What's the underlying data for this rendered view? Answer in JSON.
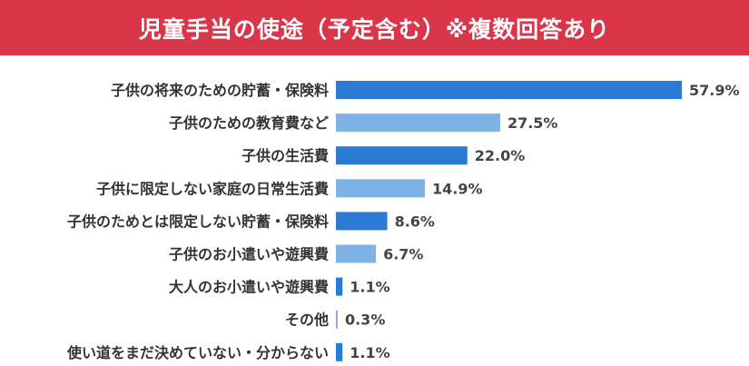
{
  "chart_data": {
    "type": "bar",
    "orientation": "horizontal",
    "title": "児童手当の使途（予定含む）※複数回答あり",
    "categories": [
      "子供の将来のための貯蓄・保険料",
      "子供のための教育費など",
      "子供の生活費",
      "子供に限定しない家庭の日常生活費",
      "子供のためとは限定しない貯蓄・保険料",
      "子供のお小遣いや遊興費",
      "大人のお小遣いや遊興費",
      "その他",
      "使い道をまだ決めていない・分からない"
    ],
    "values": [
      57.9,
      27.5,
      22.0,
      14.9,
      8.6,
      6.7,
      1.1,
      0.3,
      1.1
    ],
    "value_labels": [
      "57.9%",
      "27.5%",
      "22.0%",
      "14.9%",
      "8.6%",
      "6.7%",
      "1.1%",
      "0.3%",
      "1.1%"
    ],
    "xlim": [
      0,
      57.9
    ],
    "colors": {
      "dark": "#2b7bd3",
      "light": "#7fb2e6",
      "header_bg": "#d9364a"
    },
    "color_pattern": [
      "dark",
      "light",
      "dark",
      "light",
      "dark",
      "light",
      "dark",
      "light",
      "dark"
    ]
  }
}
